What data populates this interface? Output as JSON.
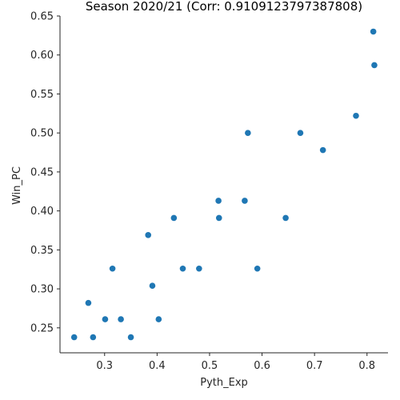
{
  "chart_data": {
    "type": "scatter",
    "title": "Season 2020/21 (Corr: 0.9109123797387808)",
    "xlabel": "Pyth_Exp",
    "ylabel": "Win_PC",
    "xlim": [
      0.215,
      0.84
    ],
    "ylim": [
      0.218,
      0.65
    ],
    "xticks": [
      0.3,
      0.4,
      0.5,
      0.6,
      0.7,
      0.8
    ],
    "xtick_labels": [
      "0.3",
      "0.4",
      "0.5",
      "0.6",
      "0.7",
      "0.8"
    ],
    "yticks": [
      0.25,
      0.3,
      0.35,
      0.4,
      0.45,
      0.5,
      0.55,
      0.6,
      0.65
    ],
    "ytick_labels": [
      "0.25",
      "0.30",
      "0.35",
      "0.40",
      "0.45",
      "0.50",
      "0.55",
      "0.60",
      "0.65"
    ],
    "grid": false,
    "marker_color": "#1f77b4",
    "points": [
      {
        "x": 0.242,
        "y": 0.238
      },
      {
        "x": 0.269,
        "y": 0.282
      },
      {
        "x": 0.278,
        "y": 0.238
      },
      {
        "x": 0.301,
        "y": 0.261
      },
      {
        "x": 0.315,
        "y": 0.326
      },
      {
        "x": 0.331,
        "y": 0.261
      },
      {
        "x": 0.35,
        "y": 0.238
      },
      {
        "x": 0.383,
        "y": 0.369
      },
      {
        "x": 0.391,
        "y": 0.304
      },
      {
        "x": 0.403,
        "y": 0.261
      },
      {
        "x": 0.432,
        "y": 0.391
      },
      {
        "x": 0.449,
        "y": 0.326
      },
      {
        "x": 0.48,
        "y": 0.326
      },
      {
        "x": 0.517,
        "y": 0.413
      },
      {
        "x": 0.518,
        "y": 0.391
      },
      {
        "x": 0.567,
        "y": 0.413
      },
      {
        "x": 0.573,
        "y": 0.5
      },
      {
        "x": 0.591,
        "y": 0.326
      },
      {
        "x": 0.645,
        "y": 0.391
      },
      {
        "x": 0.673,
        "y": 0.5
      },
      {
        "x": 0.716,
        "y": 0.478
      },
      {
        "x": 0.779,
        "y": 0.522
      },
      {
        "x": 0.812,
        "y": 0.63
      },
      {
        "x": 0.814,
        "y": 0.587
      }
    ]
  }
}
